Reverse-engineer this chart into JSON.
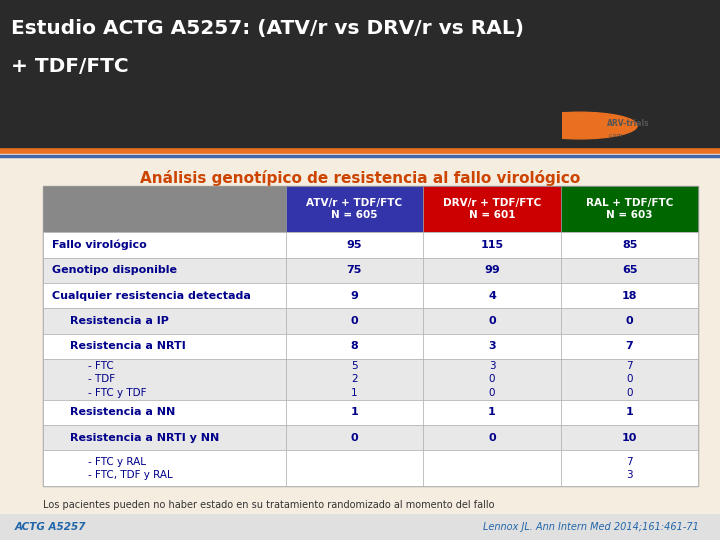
{
  "title_line1": "Estudio ACTG A5257: (ATV/r vs DRV/r vs RAL)",
  "title_line2": "+ TDF/FTC",
  "subtitle": "Análisis genotípico de resistencia al fallo virológico",
  "col_headers": [
    "ATV/r + TDF/FTC\nN = 605",
    "DRV/r + TDF/FTC\nN = 601",
    "RAL + TDF/FTC\nN = 603"
  ],
  "col_colors": [
    "#3333aa",
    "#cc0000",
    "#006600"
  ],
  "rows": [
    {
      "label": "Fallo virológico",
      "values": [
        "95",
        "115",
        "85"
      ],
      "bold": true,
      "indent": 0,
      "bg": "#ffffff"
    },
    {
      "label": "Genotipo disponible",
      "values": [
        "75",
        "99",
        "65"
      ],
      "bold": true,
      "indent": 0,
      "bg": "#e8e8e8"
    },
    {
      "label": "Cualquier resistencia detectada",
      "values": [
        "9",
        "4",
        "18"
      ],
      "bold": true,
      "indent": 0,
      "bg": "#ffffff"
    },
    {
      "label": "Resistencia a IP",
      "values": [
        "0",
        "0",
        "0"
      ],
      "bold": true,
      "indent": 1,
      "bg": "#e8e8e8"
    },
    {
      "label": "Resistencia a NRTI",
      "values": [
        "8",
        "3",
        "7"
      ],
      "bold": true,
      "indent": 1,
      "bg": "#ffffff"
    },
    {
      "label": "- FTC\n- TDF\n- FTC y TDF",
      "values": [
        "5\n2\n1",
        "3\n0\n0",
        "7\n0\n0"
      ],
      "bold": false,
      "indent": 2,
      "bg": "#e8e8e8"
    },
    {
      "label": "Resistencia a NN",
      "values": [
        "1",
        "1",
        "1"
      ],
      "bold": true,
      "indent": 1,
      "bg": "#ffffff"
    },
    {
      "label": "Resistencia a NRTI y NN",
      "values": [
        "0",
        "0",
        "10"
      ],
      "bold": true,
      "indent": 1,
      "bg": "#e8e8e8"
    },
    {
      "label": "- FTC y RAL\n- FTC, TDF y RAL",
      "values": [
        "",
        "",
        "7\n3"
      ],
      "bold": false,
      "indent": 2,
      "bg": "#ffffff"
    }
  ],
  "footer_note": "Los pacientes pueden no haber estado en su tratamiento randomizado al momento del fallo",
  "footer_citation": "Lennox JL. Ann Intern Med 2014;161:461-71",
  "footer_actg": "ACTG A5257",
  "bg_color": "#f5ede0",
  "title_color": "#ffffff",
  "subtitle_color": "#cc4400",
  "table_bg": "#d0d0d0",
  "header_text_color": "#ffffff",
  "row_text_color": "#00008b",
  "footer_color": "#333333",
  "orange_line_color": "#e87020",
  "blue_line_color": "#4466aa"
}
